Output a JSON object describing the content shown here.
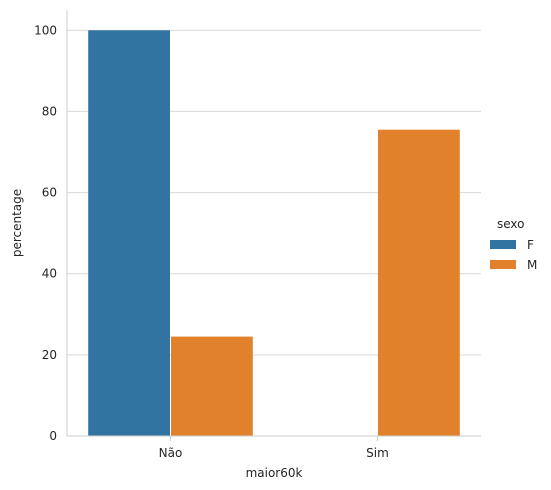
{
  "chart_data": {
    "type": "bar",
    "xlabel": "maior60k",
    "ylabel": "percentage",
    "categories": [
      "Não",
      "Sim"
    ],
    "series": [
      {
        "name": "F",
        "color": "#3274a1",
        "values": [
          100,
          0
        ]
      },
      {
        "name": "M",
        "color": "#e1812c",
        "values": [
          24.5,
          75.5
        ]
      }
    ],
    "ylim": [
      0,
      105
    ],
    "yticks": [
      0,
      20,
      40,
      60,
      80,
      100
    ],
    "grid": "horizontal",
    "legend": {
      "title": "sexo",
      "placement": "right"
    }
  }
}
